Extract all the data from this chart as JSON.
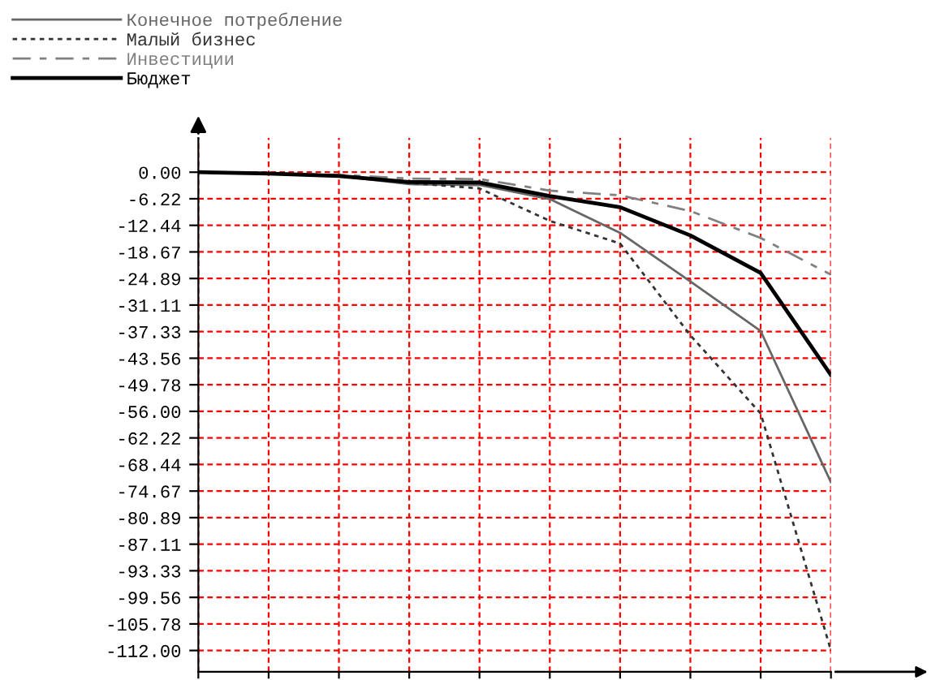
{
  "chart_data": {
    "type": "line",
    "categories": [
      null,
      null,
      null,
      null,
      null,
      null,
      null,
      null,
      null,
      null
    ],
    "series": [
      {
        "name": "Конечное потребление",
        "color": "#666666",
        "line_style": "solid",
        "values": [
          0,
          -0.3,
          -0.9,
          -2.8,
          -3.0,
          -6.3,
          -14.2,
          -25.6,
          -37.2,
          -72.6
        ]
      },
      {
        "name": "Малый бизнес",
        "color": "#333333",
        "line_style": "dotted",
        "values": [
          0,
          -0.3,
          -0.9,
          -2.5,
          -3.8,
          -11.4,
          -16.7,
          -38.2,
          -56.5,
          -112.0
        ]
      },
      {
        "name": "Инвестиции",
        "color": "#808080",
        "line_style": "dashed",
        "values": [
          0,
          -0.3,
          -0.6,
          -1.5,
          -1.6,
          -4.3,
          -5.4,
          -9.1,
          -15.4,
          -24.0
        ]
      },
      {
        "name": "Бюджет",
        "color": "#000000",
        "line_style": "solid",
        "values": [
          0,
          -0.3,
          -0.9,
          -2.3,
          -2.4,
          -5.6,
          -8.2,
          -14.8,
          -23.6,
          -47.5
        ]
      }
    ],
    "ylim": [
      -117,
      8
    ],
    "yticks": [
      {
        "value": 0,
        "label": "0.00"
      },
      {
        "value": -6.22,
        "label": "-6.22"
      },
      {
        "value": -12.44,
        "label": "-12.44"
      },
      {
        "value": -18.67,
        "label": "-18.67"
      },
      {
        "value": -24.89,
        "label": "-24.89"
      },
      {
        "value": -31.11,
        "label": "-31.11"
      },
      {
        "value": -37.33,
        "label": "-37.33"
      },
      {
        "value": -43.56,
        "label": "-43.56"
      },
      {
        "value": -49.78,
        "label": "-49.78"
      },
      {
        "value": -56.0,
        "label": "-56.00"
      },
      {
        "value": -62.22,
        "label": "-62.22"
      },
      {
        "value": -68.44,
        "label": "-68.44"
      },
      {
        "value": -74.67,
        "label": "-74.67"
      },
      {
        "value": -80.89,
        "label": "-80.89"
      },
      {
        "value": -87.11,
        "label": "-87.11"
      },
      {
        "value": -93.33,
        "label": "-93.33"
      },
      {
        "value": -99.56,
        "label": "-99.56"
      },
      {
        "value": -105.78,
        "label": "-105.78"
      },
      {
        "value": -112.0,
        "label": "-112.00"
      }
    ],
    "grid": true,
    "legend": "top left",
    "tick_labels": "y"
  }
}
